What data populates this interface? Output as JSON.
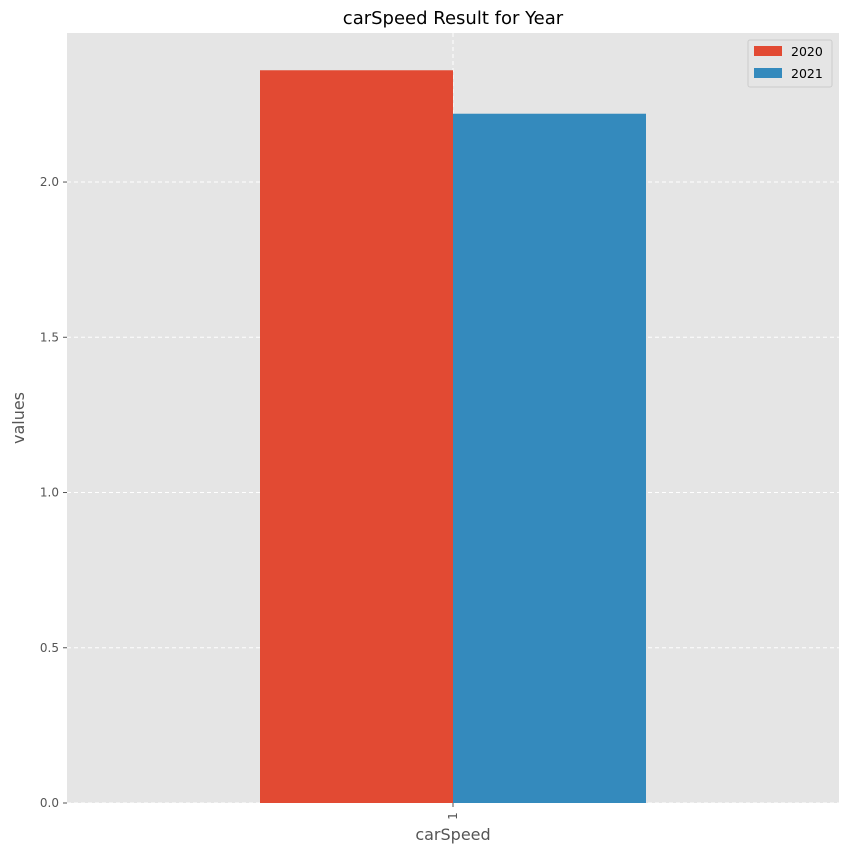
{
  "chart_data": {
    "type": "bar",
    "title": "carSpeed Result for Year",
    "xlabel": "carSpeed",
    "ylabel": "values",
    "categories": [
      "1"
    ],
    "series": [
      {
        "name": "2020",
        "values": [
          2.36
        ],
        "color": "#E24A33"
      },
      {
        "name": "2021",
        "values": [
          2.22
        ],
        "color": "#348ABD"
      }
    ],
    "ylim": [
      0,
      2.48
    ],
    "yticks": [
      {
        "value": 0.0,
        "label": "0.0"
      },
      {
        "value": 0.5,
        "label": "0.5"
      },
      {
        "value": 1.0,
        "label": "1.0"
      },
      {
        "value": 1.5,
        "label": "1.5"
      },
      {
        "value": 2.0,
        "label": "2.0"
      }
    ],
    "grid": true,
    "legend_position": "top-right",
    "background_color": "#E5E5E5",
    "grid_color": "#FFFFFF"
  }
}
